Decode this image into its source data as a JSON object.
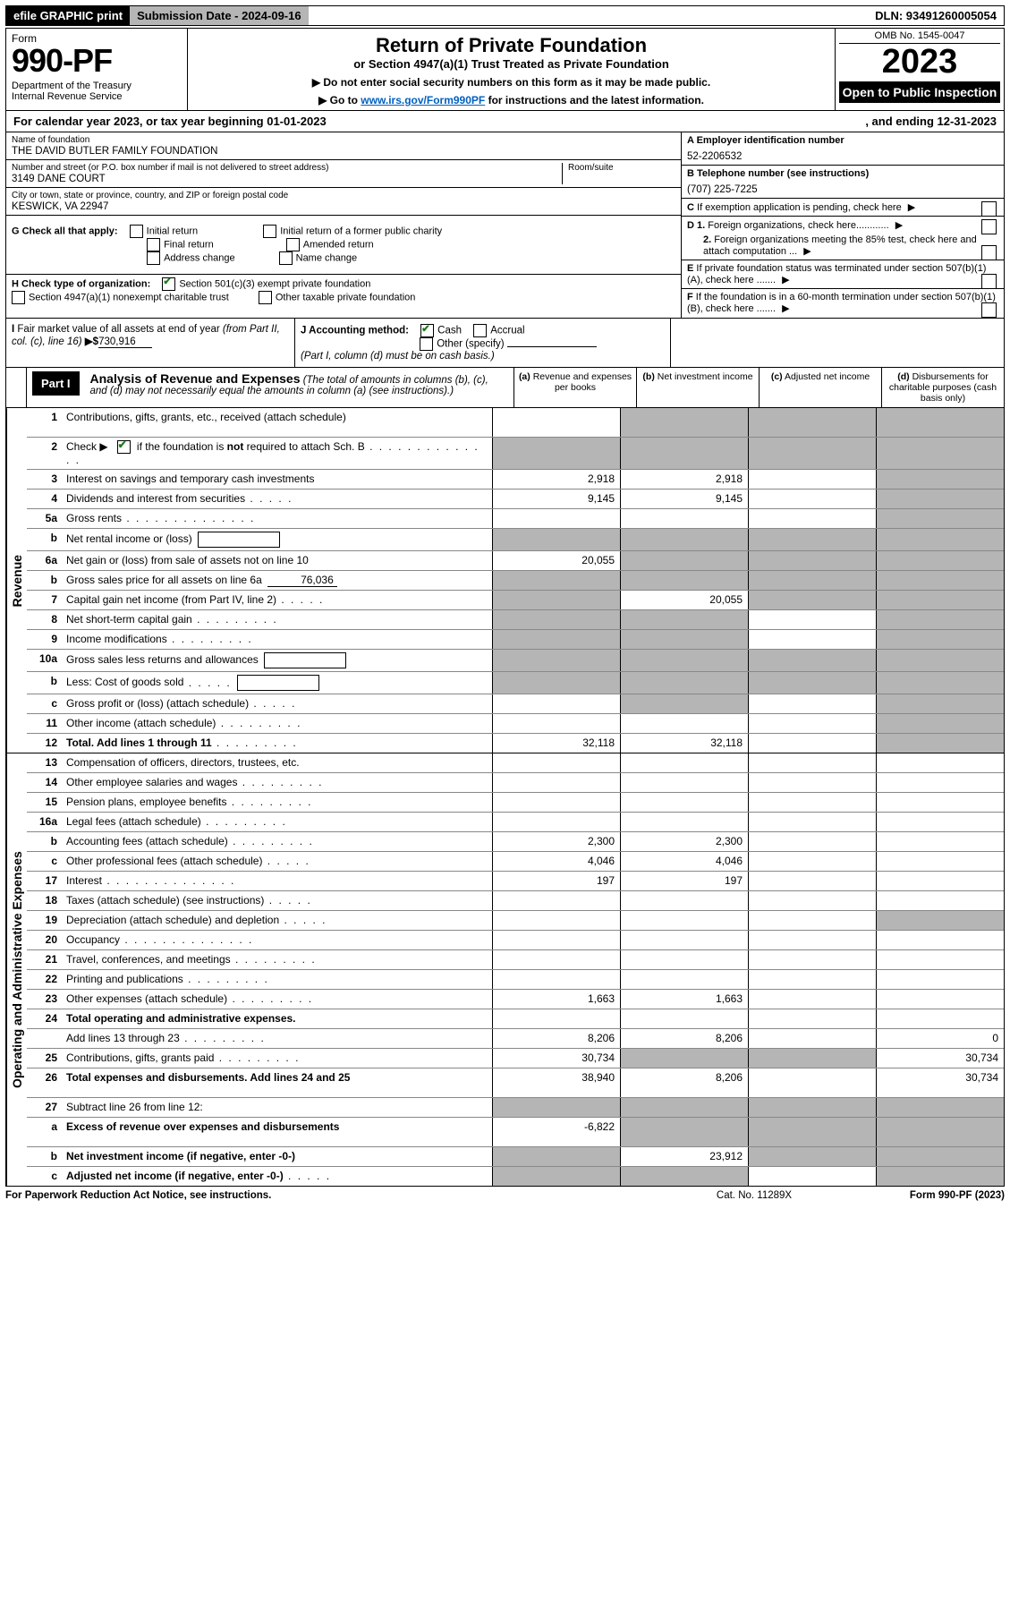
{
  "topbar": {
    "efile": "efile GRAPHIC print",
    "submission": "Submission Date - 2024-09-16",
    "dln": "DLN: 93491260005054"
  },
  "header": {
    "form_word": "Form",
    "form_num": "990-PF",
    "dept": "Department of the Treasury\nInternal Revenue Service",
    "title": "Return of Private Foundation",
    "subtitle": "or Section 4947(a)(1) Trust Treated as Private Foundation",
    "instr1": "▶ Do not enter social security numbers on this form as it may be made public.",
    "instr2_pre": "▶ Go to ",
    "instr2_link": "www.irs.gov/Form990PF",
    "instr2_post": " for instructions and the latest information.",
    "omb": "OMB No. 1545-0047",
    "year": "2023",
    "open_public": "Open to Public Inspection"
  },
  "calendar": {
    "text": "For calendar year 2023, or tax year beginning 01-01-2023",
    "ending": ", and ending 12-31-2023"
  },
  "info": {
    "name_label": "Name of foundation",
    "name": "THE DAVID BUTLER FAMILY FOUNDATION",
    "addr_label": "Number and street (or P.O. box number if mail is not delivered to street address)",
    "addr": "3149 DANE COURT",
    "room_label": "Room/suite",
    "city_label": "City or town, state or province, country, and ZIP or foreign postal code",
    "city": "KESWICK, VA  22947",
    "a_label": "A Employer identification number",
    "a_val": "52-2206532",
    "b_label": "B Telephone number (see instructions)",
    "b_val": "(707) 225-7225",
    "c_label": "C If exemption application is pending, check here",
    "d1_label": "D 1. Foreign organizations, check here............",
    "d2_label": "2. Foreign organizations meeting the 85% test, check here and attach computation ...",
    "e_label": "E  If private foundation status was terminated under section 507(b)(1)(A), check here .......",
    "f_label": "F  If the foundation is in a 60-month termination under section 507(b)(1)(B), check here ......."
  },
  "g": {
    "label": "G Check all that apply:",
    "opts": [
      "Initial return",
      "Final return",
      "Address change",
      "Initial return of a former public charity",
      "Amended return",
      "Name change"
    ]
  },
  "h": {
    "label": "H Check type of organization:",
    "opt1": "Section 501(c)(3) exempt private foundation",
    "opt2": "Section 4947(a)(1) nonexempt charitable trust",
    "opt3": "Other taxable private foundation"
  },
  "i": {
    "label": "I Fair market value of all assets at end of year (from Part II, col. (c), line 16) ",
    "prefix": "▶$",
    "val": "730,916"
  },
  "j": {
    "label": "J Accounting method:",
    "cash": "Cash",
    "accrual": "Accrual",
    "other": "Other (specify)",
    "note": "(Part I, column (d) must be on cash basis.)"
  },
  "part1": {
    "badge": "Part I",
    "title": "Analysis of Revenue and Expenses",
    "note": "(The total of amounts in columns (b), (c), and (d) may not necessarily equal the amounts in column (a) (see instructions).)",
    "col_a": "Revenue and expenses per books",
    "col_b": "Net investment income",
    "col_c": "Adjusted net income",
    "col_d": "Disbursements for charitable purposes (cash basis only)"
  },
  "side_labels": {
    "revenue": "Revenue",
    "expenses": "Operating and Administrative Expenses"
  },
  "rows": [
    {
      "n": "1",
      "desc": "Contributions, gifts, grants, etc., received (attach schedule)",
      "a": "",
      "b_shade": true,
      "c_shade": true,
      "d_shade": true,
      "tall": true
    },
    {
      "n": "2",
      "desc_pre": "Check ▶",
      "desc_post": " if the foundation is ",
      "desc_bold": "not",
      "desc_end": " required to attach Sch. B",
      "has_check": true,
      "a_shade": true,
      "b_shade": true,
      "c_shade": true,
      "d_shade": true,
      "tall": true,
      "dots": "dots"
    },
    {
      "n": "3",
      "desc": "Interest on savings and temporary cash investments",
      "a": "2,918",
      "b": "2,918",
      "d_shade": true
    },
    {
      "n": "4",
      "desc": "Dividends and interest from securities",
      "a": "9,145",
      "b": "9,145",
      "d_shade": true,
      "dots": "dots-short"
    },
    {
      "n": "5a",
      "desc": "Gross rents",
      "d_shade": true,
      "dots": "dots"
    },
    {
      "n": "b",
      "desc": "Net rental income or (loss)",
      "a_shade": true,
      "b_shade": true,
      "c_shade": true,
      "d_shade": true,
      "inline_box": true
    },
    {
      "n": "6a",
      "desc": "Net gain or (loss) from sale of assets not on line 10",
      "a": "20,055",
      "b_shade": true,
      "c_shade": true,
      "d_shade": true
    },
    {
      "n": "b",
      "desc": "Gross sales price for all assets on line 6a",
      "inline_val": "76,036",
      "a_shade": true,
      "b_shade": true,
      "c_shade": true,
      "d_shade": true
    },
    {
      "n": "7",
      "desc": "Capital gain net income (from Part IV, line 2)",
      "a_shade": true,
      "b": "20,055",
      "c_shade": true,
      "d_shade": true,
      "dots": "dots-short"
    },
    {
      "n": "8",
      "desc": "Net short-term capital gain",
      "a_shade": true,
      "b_shade": true,
      "d_shade": true,
      "dots": "dots-med"
    },
    {
      "n": "9",
      "desc": "Income modifications",
      "a_shade": true,
      "b_shade": true,
      "d_shade": true,
      "dots": "dots-med"
    },
    {
      "n": "10a",
      "desc": "Gross sales less returns and allowances",
      "inline_box": true,
      "a_shade": true,
      "b_shade": true,
      "c_shade": true,
      "d_shade": true
    },
    {
      "n": "b",
      "desc": "Less: Cost of goods sold",
      "inline_box": true,
      "a_shade": true,
      "b_shade": true,
      "c_shade": true,
      "d_shade": true,
      "dots": "dots-short"
    },
    {
      "n": "c",
      "desc": "Gross profit or (loss) (attach schedule)",
      "b_shade": true,
      "d_shade": true,
      "dots": "dots-short"
    },
    {
      "n": "11",
      "desc": "Other income (attach schedule)",
      "d_shade": true,
      "dots": "dots-med"
    },
    {
      "n": "12",
      "desc": "Total. Add lines 1 through 11",
      "bold": true,
      "a": "32,118",
      "b": "32,118",
      "d_shade": true,
      "dots": "dots-med"
    }
  ],
  "exp_rows": [
    {
      "n": "13",
      "desc": "Compensation of officers, directors, trustees, etc."
    },
    {
      "n": "14",
      "desc": "Other employee salaries and wages",
      "dots": "dots-med"
    },
    {
      "n": "15",
      "desc": "Pension plans, employee benefits",
      "dots": "dots-med"
    },
    {
      "n": "16a",
      "desc": "Legal fees (attach schedule)",
      "dots": "dots-med"
    },
    {
      "n": "b",
      "desc": "Accounting fees (attach schedule)",
      "a": "2,300",
      "b": "2,300",
      "dots": "dots-med"
    },
    {
      "n": "c",
      "desc": "Other professional fees (attach schedule)",
      "a": "4,046",
      "b": "4,046",
      "dots": "dots-short"
    },
    {
      "n": "17",
      "desc": "Interest",
      "a": "197",
      "b": "197",
      "dots": "dots"
    },
    {
      "n": "18",
      "desc": "Taxes (attach schedule) (see instructions)",
      "dots": "dots-short"
    },
    {
      "n": "19",
      "desc": "Depreciation (attach schedule) and depletion",
      "d_shade": true,
      "dots": "dots-short"
    },
    {
      "n": "20",
      "desc": "Occupancy",
      "dots": "dots"
    },
    {
      "n": "21",
      "desc": "Travel, conferences, and meetings",
      "dots": "dots-med"
    },
    {
      "n": "22",
      "desc": "Printing and publications",
      "dots": "dots-med"
    },
    {
      "n": "23",
      "desc": "Other expenses (attach schedule)",
      "a": "1,663",
      "b": "1,663",
      "dots": "dots-med"
    },
    {
      "n": "24",
      "desc": "Total operating and administrative expenses.",
      "bold": true,
      "noborder": true
    },
    {
      "n": "",
      "desc": "Add lines 13 through 23",
      "a": "8,206",
      "b": "8,206",
      "d": "0",
      "dots": "dots-med"
    },
    {
      "n": "25",
      "desc": "Contributions, gifts, grants paid",
      "a": "30,734",
      "b_shade": true,
      "c_shade": true,
      "d": "30,734",
      "dots": "dots-med"
    },
    {
      "n": "26",
      "desc": "Total expenses and disbursements. Add lines 24 and 25",
      "bold": true,
      "a": "38,940",
      "b": "8,206",
      "d": "30,734",
      "tall": true
    },
    {
      "n": "27",
      "desc": "Subtract line 26 from line 12:",
      "a_shade": true,
      "b_shade": true,
      "c_shade": true,
      "d_shade": true
    },
    {
      "n": "a",
      "desc": "Excess of revenue over expenses and disbursements",
      "bold": true,
      "a": "-6,822",
      "b_shade": true,
      "c_shade": true,
      "d_shade": true,
      "tall": true
    },
    {
      "n": "b",
      "desc": "Net investment income (if negative, enter -0-)",
      "bold": true,
      "a_shade": true,
      "b": "23,912",
      "c_shade": true,
      "d_shade": true
    },
    {
      "n": "c",
      "desc": "Adjusted net income (if negative, enter -0-)",
      "bold": true,
      "a_shade": true,
      "b_shade": true,
      "d_shade": true,
      "dots": "dots-short"
    }
  ],
  "footer": {
    "left": "For Paperwork Reduction Act Notice, see instructions.",
    "mid": "Cat. No. 11289X",
    "right": "Form 990-PF (2023)"
  }
}
